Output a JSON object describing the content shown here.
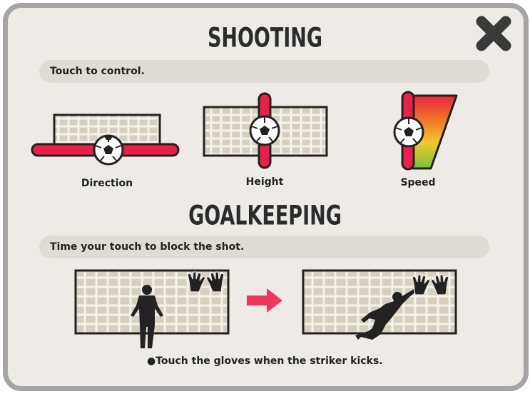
{
  "shooting": {
    "title": "SHOOTING",
    "instruction": "Touch to control.",
    "controls": [
      {
        "label": "Direction",
        "icon": "direction-gauge-icon"
      },
      {
        "label": "Height",
        "icon": "height-gauge-icon"
      },
      {
        "label": "Speed",
        "icon": "speed-gauge-icon"
      }
    ]
  },
  "goalkeeping": {
    "title": "GOALKEEPING",
    "instruction": "Time your touch to block the shot.",
    "note": "Touch the gloves when the striker kicks."
  },
  "close": {
    "icon": "close-icon"
  },
  "colors": {
    "panel_bg": "#eeebe6",
    "panel_border": "#a5a5a5",
    "strip_bg": "#dfdcd3",
    "accent_red": "#e8204a",
    "arrow_red": "#f0365e",
    "net_fill": "#d8cfbf",
    "dark": "#222222"
  }
}
